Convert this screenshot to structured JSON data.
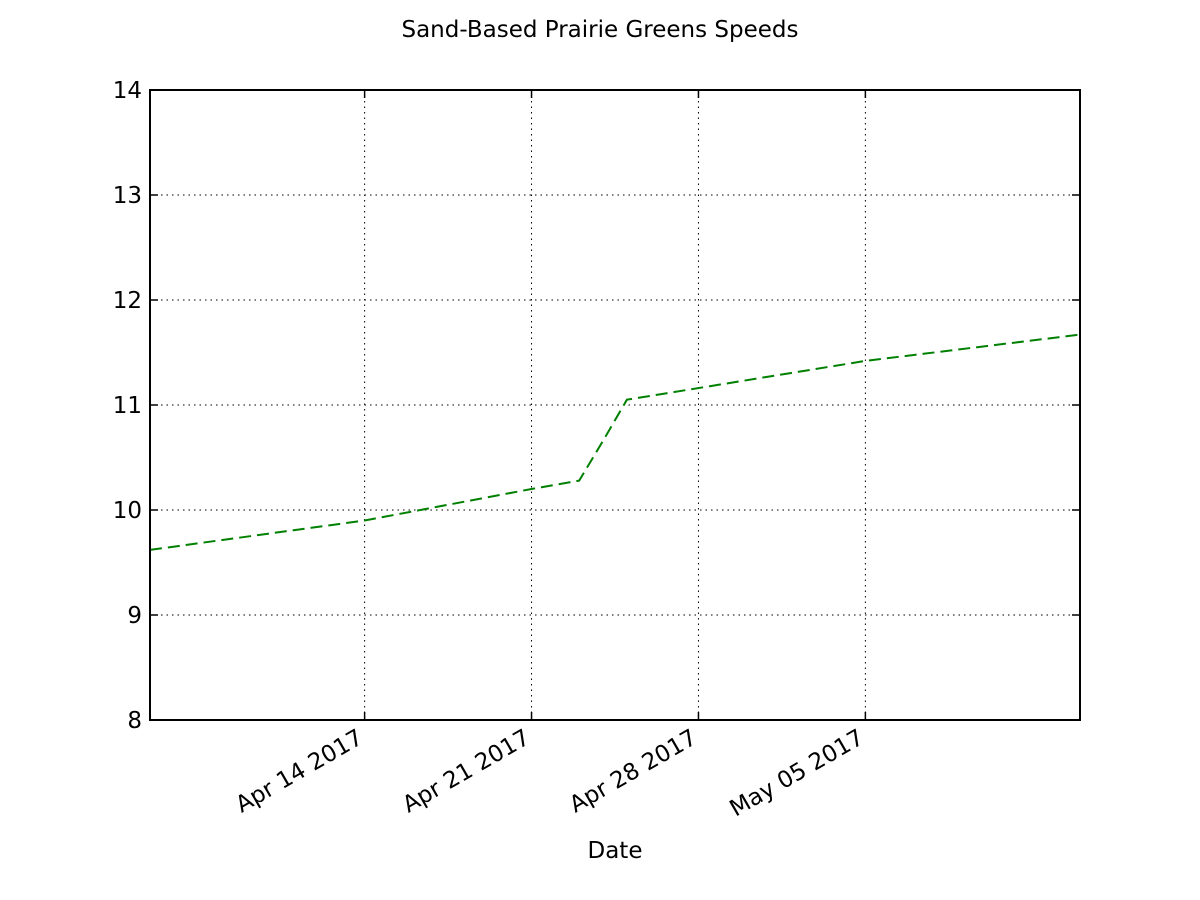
{
  "chart_data": {
    "type": "line",
    "title": "Sand-Based Prairie Greens Speeds",
    "xlabel": "Date",
    "ylabel": "",
    "x_type": "date",
    "xlim": [
      "2017-04-05",
      "2017-05-14"
    ],
    "ylim": [
      8,
      14
    ],
    "x_ticks": [
      {
        "date": "2017-04-14",
        "label": "Apr 14 2017"
      },
      {
        "date": "2017-04-21",
        "label": "Apr 21 2017"
      },
      {
        "date": "2017-04-28",
        "label": "Apr 28 2017"
      },
      {
        "date": "2017-05-05",
        "label": "May 05 2017"
      }
    ],
    "y_ticks": [
      8,
      9,
      10,
      11,
      12,
      13,
      14
    ],
    "grid": true,
    "series": [
      {
        "color": "#008000",
        "line_style": "dashed",
        "x": [
          "2017-04-05",
          "2017-04-14",
          "2017-04-21",
          "2017-04-22",
          "2017-04-23",
          "2017-04-24",
          "2017-04-25",
          "2017-05-05",
          "2017-05-14"
        ],
        "y": [
          9.62,
          9.9,
          10.2,
          10.24,
          10.28,
          10.66,
          11.05,
          11.42,
          11.67
        ]
      }
    ]
  }
}
